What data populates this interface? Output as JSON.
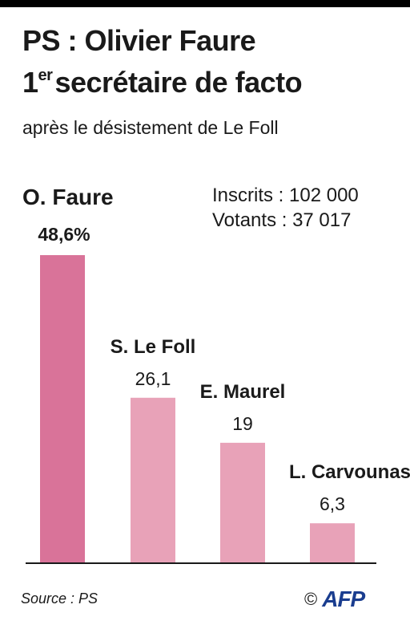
{
  "title_line1": "PS : Olivier Faure",
  "title_line2_num": "1",
  "title_line2_sup": "er",
  "title_line2_rest": "secrétaire de facto",
  "subtitle": "après le désistement de Le Foll",
  "stats": {
    "inscrits": "Inscrits : 102 000",
    "votants": "Votants : 37 017"
  },
  "source": "Source : PS",
  "copyright": "©",
  "logo": "AFP",
  "chart_data": {
    "type": "bar",
    "categories": [
      "O. Faure",
      "S. Le Foll",
      "E. Maurel",
      "L. Carvounas"
    ],
    "values": [
      48.6,
      26.1,
      19,
      6.3
    ],
    "value_labels": [
      "48,6%",
      "26,1",
      "19",
      "6,3"
    ],
    "ylim": [
      0,
      50
    ],
    "colors": [
      "#d97399",
      "#e8a2b8",
      "#e8a2b8",
      "#e8a2b8"
    ]
  }
}
